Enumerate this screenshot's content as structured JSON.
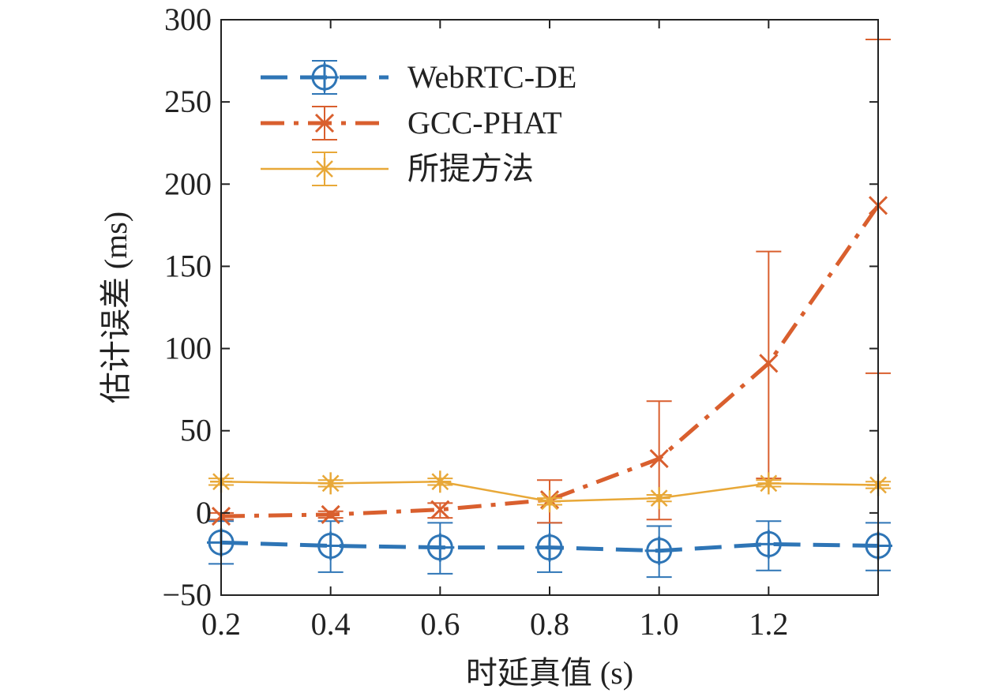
{
  "chart_data": {
    "type": "line",
    "x": [
      0.2,
      0.4,
      0.6,
      0.8,
      1.0,
      1.2,
      1.4
    ],
    "xlabel": "时延真值 (s)",
    "ylabel": "估计误差 (ms)",
    "xlim": [
      0.2,
      1.4
    ],
    "ylim": [
      -50,
      300
    ],
    "xticks": [
      0.2,
      0.4,
      0.6,
      0.8,
      1.0,
      1.2
    ],
    "xtick_labels": [
      "0.2",
      "0.4",
      "0.6",
      "0.8",
      "1.0",
      "1.2"
    ],
    "yticks": [
      -50,
      0,
      50,
      100,
      150,
      200,
      250,
      300
    ],
    "ytick_labels": [
      "−50",
      "0",
      "50",
      "100",
      "150",
      "200",
      "250",
      "300"
    ],
    "grid": false,
    "legend_position": "top-left",
    "series": [
      {
        "name": "WebRTC-DE",
        "color": "#2e75b6",
        "line_style": "dashed",
        "marker": "circle-plus",
        "values": [
          -18,
          -20,
          -21,
          -21,
          -23,
          -19,
          -20
        ],
        "err_low": [
          -31,
          -36,
          -37,
          -36,
          -39,
          -35,
          -35
        ],
        "err_high": [
          -5,
          -5,
          -6,
          -6,
          -8,
          -5,
          -6
        ]
      },
      {
        "name": "GCC-PHAT",
        "color": "#d95f2e",
        "line_style": "dash-dot",
        "marker": "x",
        "values": [
          -2,
          -1,
          2,
          8,
          33,
          91,
          187
        ],
        "err_low": [
          -4,
          -3,
          -3,
          -6,
          -4,
          21,
          85
        ],
        "err_high": [
          0,
          1,
          6,
          20,
          68,
          159,
          288
        ]
      },
      {
        "name": "所提方法",
        "color": "#e8a838",
        "line_style": "solid",
        "marker": "asterisk",
        "values": [
          19,
          18,
          19,
          7,
          9,
          18,
          17
        ],
        "err_low": [
          17,
          16,
          17,
          5,
          7,
          16,
          15
        ],
        "err_high": [
          21,
          20,
          21,
          9,
          11,
          20,
          19
        ]
      }
    ]
  }
}
